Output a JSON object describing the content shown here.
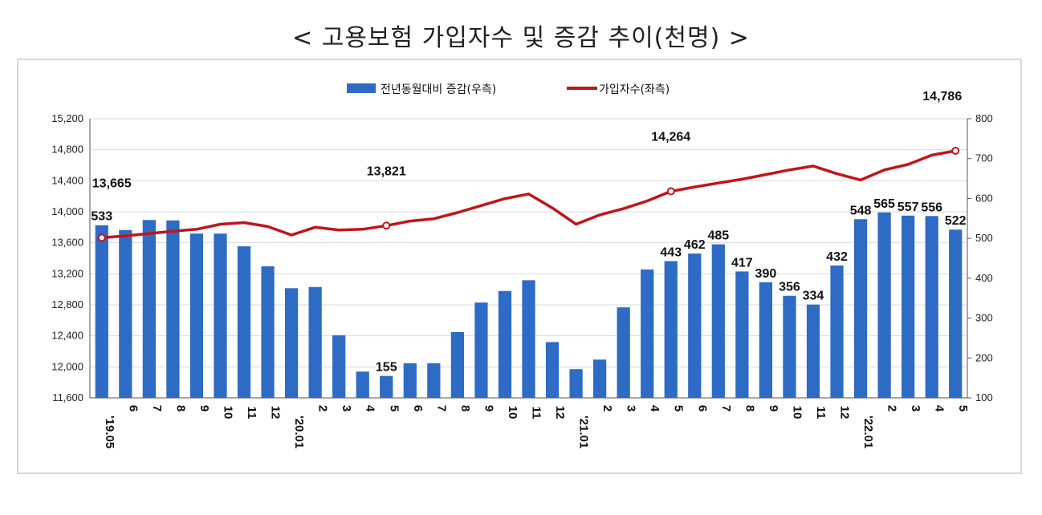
{
  "title": "< 고용보험 가입자수 및 증감 추이(천명) >",
  "chart_data": {
    "type": "bar+line",
    "categories": [
      "'19.05",
      "6",
      "7",
      "8",
      "9",
      "10",
      "11",
      "12",
      "'20.01",
      "2",
      "3",
      "4",
      "5",
      "6",
      "7",
      "8",
      "9",
      "10",
      "11",
      "12",
      "'21.01",
      "2",
      "3",
      "4",
      "5",
      "6",
      "7",
      "8",
      "9",
      "10",
      "11",
      "12",
      "'22.01",
      "2",
      "3",
      "4",
      "5"
    ],
    "series": [
      {
        "name": "전년동월대비 증감(우측)",
        "type": "bar",
        "axis": "right",
        "color": "#2e6bc4",
        "values": [
          533,
          521,
          546,
          545,
          512,
          512,
          480,
          430,
          375,
          378,
          257,
          166,
          155,
          187,
          187,
          265,
          339,
          368,
          395,
          240,
          172,
          196,
          327,
          422,
          443,
          462,
          485,
          417,
          390,
          356,
          334,
          432,
          548,
          565,
          557,
          556,
          522
        ]
      },
      {
        "name": "가입자수(좌측)",
        "type": "line",
        "axis": "left",
        "color": "#c0151b",
        "values": [
          13665,
          13690,
          13720,
          13750,
          13775,
          13840,
          13860,
          13810,
          13700,
          13800,
          13765,
          13775,
          13821,
          13880,
          13910,
          13990,
          14080,
          14170,
          14230,
          14050,
          13840,
          13960,
          14040,
          14140,
          14264,
          14320,
          14370,
          14420,
          14480,
          14540,
          14590,
          14490,
          14410,
          14540,
          14610,
          14730,
          14786
        ]
      }
    ],
    "yleft": {
      "min": 11600,
      "max": 15200,
      "ticks": [
        "11,600",
        "12,000",
        "12,400",
        "12,800",
        "13,200",
        "13,600",
        "14,000",
        "14,400",
        "14,800",
        "15,200"
      ]
    },
    "yright": {
      "min": 100,
      "max": 800,
      "ticks": [
        "100",
        "200",
        "300",
        "400",
        "500",
        "600",
        "700",
        "800"
      ]
    },
    "bar_labels": [
      {
        "index": 0,
        "text": "533"
      },
      {
        "index": 12,
        "text": "155"
      },
      {
        "index": 24,
        "text": "443"
      },
      {
        "index": 25,
        "text": "462"
      },
      {
        "index": 26,
        "text": "485"
      },
      {
        "index": 27,
        "text": "417"
      },
      {
        "index": 28,
        "text": "390"
      },
      {
        "index": 29,
        "text": "356"
      },
      {
        "index": 30,
        "text": "334"
      },
      {
        "index": 31,
        "text": "432"
      },
      {
        "index": 32,
        "text": "548"
      },
      {
        "index": 33,
        "text": "565"
      },
      {
        "index": 34,
        "text": "557"
      },
      {
        "index": 35,
        "text": "556"
      },
      {
        "index": 36,
        "text": "522"
      }
    ],
    "line_labels": [
      {
        "index": 0,
        "text": "13,665"
      },
      {
        "index": 12,
        "text": "13,821"
      },
      {
        "index": 24,
        "text": "14,264"
      },
      {
        "index": 36,
        "text": "14,786"
      }
    ],
    "legend_placement": "top-center",
    "grid": true
  }
}
